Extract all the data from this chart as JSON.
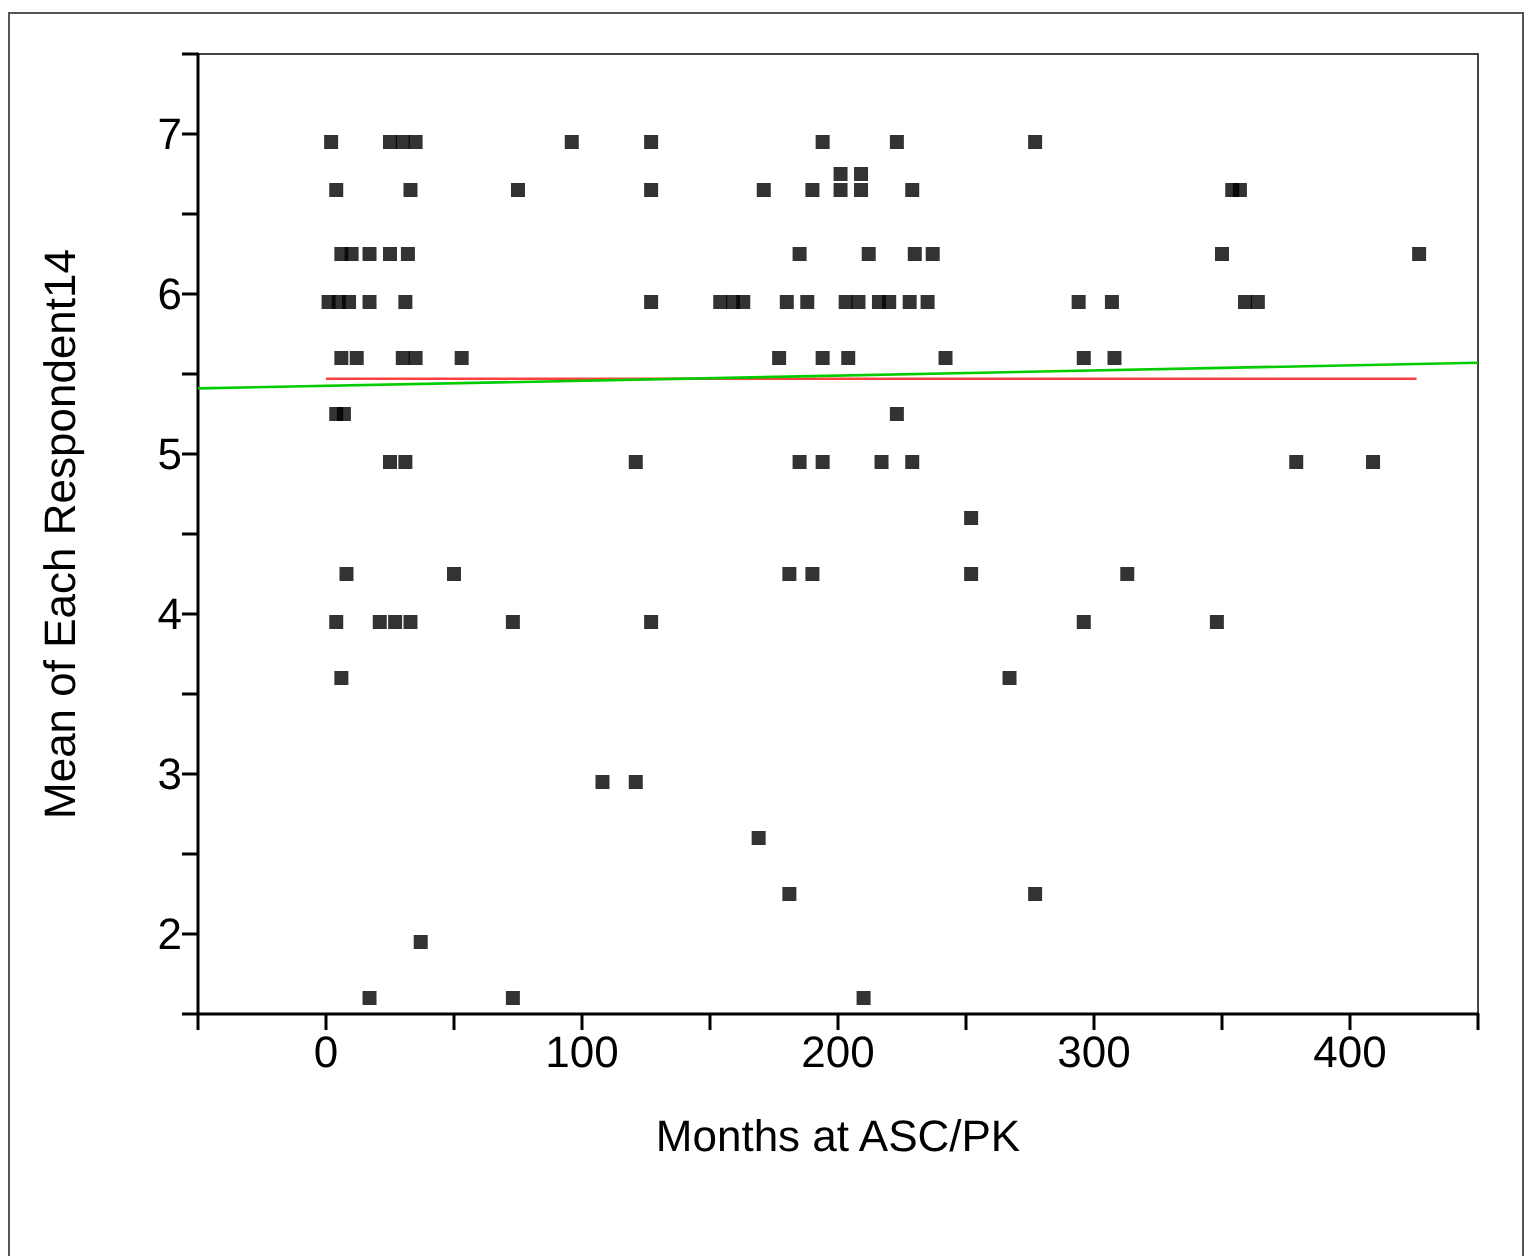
{
  "chart_data": {
    "type": "scatter",
    "xlabel": "Months at ASC/PK",
    "ylabel": "Mean of Each Respondent14",
    "marker": "square",
    "grid": false,
    "xlim": [
      -50,
      450
    ],
    "ylim": [
      1.5,
      7.5
    ],
    "xticks": [
      {
        "value": -50,
        "label": null
      },
      0,
      {
        "value": 50,
        "label": null
      },
      100,
      {
        "value": 150,
        "label": null
      },
      200,
      {
        "value": 250,
        "label": null
      },
      300,
      {
        "value": 350,
        "label": null
      },
      400,
      {
        "value": 450,
        "label": null
      }
    ],
    "yticks": [
      {
        "value": 1.5,
        "label": null
      },
      2,
      {
        "value": 2.5,
        "label": null
      },
      3,
      {
        "value": 3.5,
        "label": null
      },
      4,
      {
        "value": 4.5,
        "label": null
      },
      5,
      {
        "value": 5.5,
        "label": null
      },
      6,
      {
        "value": 6.5,
        "label": null
      },
      7,
      {
        "value": 7.5,
        "label": null
      }
    ],
    "series": [
      {
        "color": "#000000",
        "x": [
          2,
          25,
          30,
          35,
          96,
          127,
          194,
          223,
          277,
          4,
          33,
          75,
          127,
          171,
          190,
          201,
          209,
          201,
          209,
          229,
          354,
          357,
          6,
          10,
          17,
          25,
          32,
          185,
          212,
          230,
          237,
          350,
          427,
          1,
          5,
          9,
          17,
          31,
          127,
          154,
          159,
          163,
          180,
          188,
          203,
          208,
          216,
          220,
          228,
          235,
          294,
          307,
          359,
          364,
          6,
          12,
          30,
          35,
          53,
          177,
          194,
          204,
          242,
          296,
          308,
          4,
          7,
          223,
          25,
          31,
          121,
          185,
          194,
          217,
          229,
          379,
          409,
          252,
          8,
          50,
          181,
          190,
          252,
          313,
          4,
          21,
          27,
          33,
          73,
          127,
          296,
          348,
          6,
          267,
          108,
          121,
          169,
          181,
          277,
          37,
          17,
          73,
          210
        ],
        "values": [
          6.95,
          6.95,
          6.95,
          6.95,
          6.95,
          6.95,
          6.95,
          6.95,
          6.95,
          6.65,
          6.65,
          6.65,
          6.65,
          6.65,
          6.65,
          6.75,
          6.75,
          6.65,
          6.65,
          6.65,
          6.65,
          6.65,
          6.25,
          6.25,
          6.25,
          6.25,
          6.25,
          6.25,
          6.25,
          6.25,
          6.25,
          6.25,
          6.25,
          5.95,
          5.95,
          5.95,
          5.95,
          5.95,
          5.95,
          5.95,
          5.95,
          5.95,
          5.95,
          5.95,
          5.95,
          5.95,
          5.95,
          5.95,
          5.95,
          5.95,
          5.95,
          5.95,
          5.95,
          5.95,
          5.6,
          5.6,
          5.6,
          5.6,
          5.6,
          5.6,
          5.6,
          5.6,
          5.6,
          5.6,
          5.6,
          5.25,
          5.25,
          5.25,
          4.95,
          4.95,
          4.95,
          4.95,
          4.95,
          4.95,
          4.95,
          4.95,
          4.95,
          4.6,
          4.25,
          4.25,
          4.25,
          4.25,
          4.25,
          4.25,
          3.95,
          3.95,
          3.95,
          3.95,
          3.95,
          3.95,
          3.95,
          3.95,
          3.6,
          3.6,
          2.95,
          2.95,
          2.6,
          2.25,
          2.25,
          1.95,
          1.6,
          1.6,
          1.6
        ]
      },
      {
        "type": "line",
        "color": "#ff4040",
        "marker": "none",
        "x": [
          0,
          426
        ],
        "values": [
          5.47,
          5.47
        ]
      },
      {
        "type": "line",
        "color": "#00cc00",
        "marker": "none",
        "x": [
          -50,
          450
        ],
        "values": [
          5.41,
          5.57
        ]
      }
    ]
  }
}
